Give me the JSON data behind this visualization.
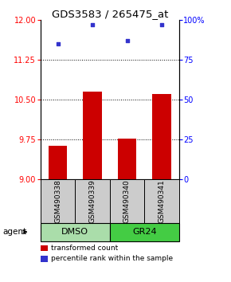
{
  "title": "GDS3583 / 265475_at",
  "samples": [
    "GSM490338",
    "GSM490339",
    "GSM490340",
    "GSM490341"
  ],
  "bar_values": [
    9.62,
    10.65,
    9.76,
    10.6
  ],
  "scatter_values": [
    85,
    97,
    87,
    97
  ],
  "ylim_left": [
    9,
    12
  ],
  "ylim_right": [
    0,
    100
  ],
  "yticks_left": [
    9,
    9.75,
    10.5,
    11.25,
    12
  ],
  "yticks_right": [
    0,
    25,
    50,
    75,
    100
  ],
  "ytick_labels_right": [
    "0",
    "25",
    "50",
    "75",
    "100%"
  ],
  "bar_color": "#cc0000",
  "scatter_color": "#3333cc",
  "bar_width": 0.55,
  "groups": [
    {
      "label": "DMSO",
      "samples": [
        0,
        1
      ],
      "color": "#aaddaa"
    },
    {
      "label": "GR24",
      "samples": [
        2,
        3
      ],
      "color": "#44cc44"
    }
  ],
  "agent_label": "agent",
  "legend_items": [
    {
      "label": "transformed count",
      "color": "#cc0000"
    },
    {
      "label": "percentile rank within the sample",
      "color": "#3333cc"
    }
  ],
  "sample_box_color": "#cccccc",
  "title_fontsize": 9.5,
  "tick_fontsize": 7,
  "legend_fontsize": 6.5,
  "sample_fontsize": 6.5,
  "group_fontsize": 8,
  "agent_fontsize": 7.5
}
